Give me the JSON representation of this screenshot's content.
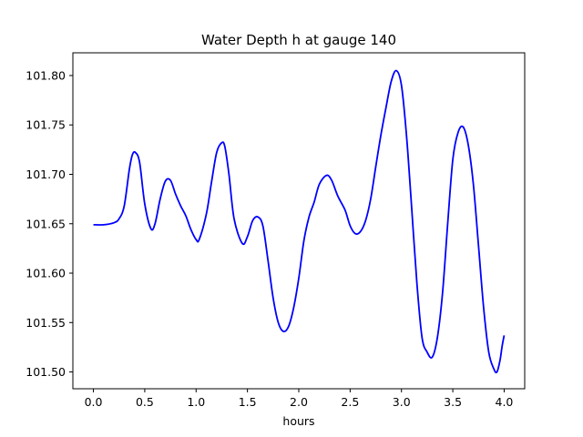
{
  "chart_data": {
    "type": "line",
    "title": "Water Depth h at gauge 140",
    "xlabel": "hours",
    "ylabel": "",
    "xlim": [
      -0.2,
      4.2
    ],
    "ylim": [
      101.483,
      101.823
    ],
    "x_ticks": [
      0.0,
      0.5,
      1.0,
      1.5,
      2.0,
      2.5,
      3.0,
      3.5,
      4.0
    ],
    "x_tick_labels": [
      "0.0",
      "0.5",
      "1.0",
      "1.5",
      "2.0",
      "2.5",
      "3.0",
      "3.5",
      "4.0"
    ],
    "y_ticks": [
      101.5,
      101.55,
      101.6,
      101.65,
      101.7,
      101.75,
      101.8
    ],
    "y_tick_labels": [
      "101.50",
      "101.55",
      "101.60",
      "101.65",
      "101.70",
      "101.75",
      "101.80"
    ],
    "grid": false,
    "series": [
      {
        "color": "#0000ff",
        "points": [
          [
            0.0,
            101.649
          ],
          [
            0.1,
            101.649
          ],
          [
            0.2,
            101.651
          ],
          [
            0.25,
            101.655
          ],
          [
            0.3,
            101.668
          ],
          [
            0.35,
            101.705
          ],
          [
            0.38,
            101.72
          ],
          [
            0.41,
            101.722
          ],
          [
            0.45,
            101.712
          ],
          [
            0.5,
            101.67
          ],
          [
            0.56,
            101.645
          ],
          [
            0.6,
            101.65
          ],
          [
            0.65,
            101.675
          ],
          [
            0.7,
            101.693
          ],
          [
            0.75,
            101.694
          ],
          [
            0.8,
            101.68
          ],
          [
            0.85,
            101.668
          ],
          [
            0.9,
            101.658
          ],
          [
            0.95,
            101.644
          ],
          [
            1.0,
            101.634
          ],
          [
            1.03,
            101.634
          ],
          [
            1.1,
            101.66
          ],
          [
            1.15,
            101.692
          ],
          [
            1.2,
            101.722
          ],
          [
            1.25,
            101.732
          ],
          [
            1.28,
            101.728
          ],
          [
            1.32,
            101.7
          ],
          [
            1.37,
            101.655
          ],
          [
            1.45,
            101.63
          ],
          [
            1.5,
            101.637
          ],
          [
            1.55,
            101.653
          ],
          [
            1.6,
            101.657
          ],
          [
            1.65,
            101.648
          ],
          [
            1.7,
            101.613
          ],
          [
            1.75,
            101.575
          ],
          [
            1.8,
            101.55
          ],
          [
            1.85,
            101.541
          ],
          [
            1.9,
            101.546
          ],
          [
            1.95,
            101.565
          ],
          [
            2.0,
            101.595
          ],
          [
            2.05,
            101.633
          ],
          [
            2.1,
            101.657
          ],
          [
            2.15,
            101.672
          ],
          [
            2.2,
            101.69
          ],
          [
            2.27,
            101.699
          ],
          [
            2.32,
            101.694
          ],
          [
            2.38,
            101.678
          ],
          [
            2.45,
            101.664
          ],
          [
            2.5,
            101.648
          ],
          [
            2.55,
            101.64
          ],
          [
            2.6,
            101.642
          ],
          [
            2.65,
            101.653
          ],
          [
            2.7,
            101.675
          ],
          [
            2.75,
            101.708
          ],
          [
            2.8,
            101.74
          ],
          [
            2.85,
            101.768
          ],
          [
            2.9,
            101.794
          ],
          [
            2.95,
            101.805
          ],
          [
            3.0,
            101.79
          ],
          [
            3.05,
            101.738
          ],
          [
            3.1,
            101.665
          ],
          [
            3.15,
            101.59
          ],
          [
            3.2,
            101.535
          ],
          [
            3.25,
            101.52
          ],
          [
            3.3,
            101.515
          ],
          [
            3.35,
            101.535
          ],
          [
            3.4,
            101.58
          ],
          [
            3.45,
            101.65
          ],
          [
            3.5,
            101.715
          ],
          [
            3.55,
            101.742
          ],
          [
            3.6,
            101.748
          ],
          [
            3.65,
            101.73
          ],
          [
            3.7,
            101.69
          ],
          [
            3.75,
            101.628
          ],
          [
            3.8,
            101.565
          ],
          [
            3.85,
            101.52
          ],
          [
            3.9,
            101.503
          ],
          [
            3.93,
            101.5
          ],
          [
            3.96,
            101.512
          ],
          [
            3.98,
            101.526
          ],
          [
            4.0,
            101.537
          ]
        ]
      }
    ]
  }
}
